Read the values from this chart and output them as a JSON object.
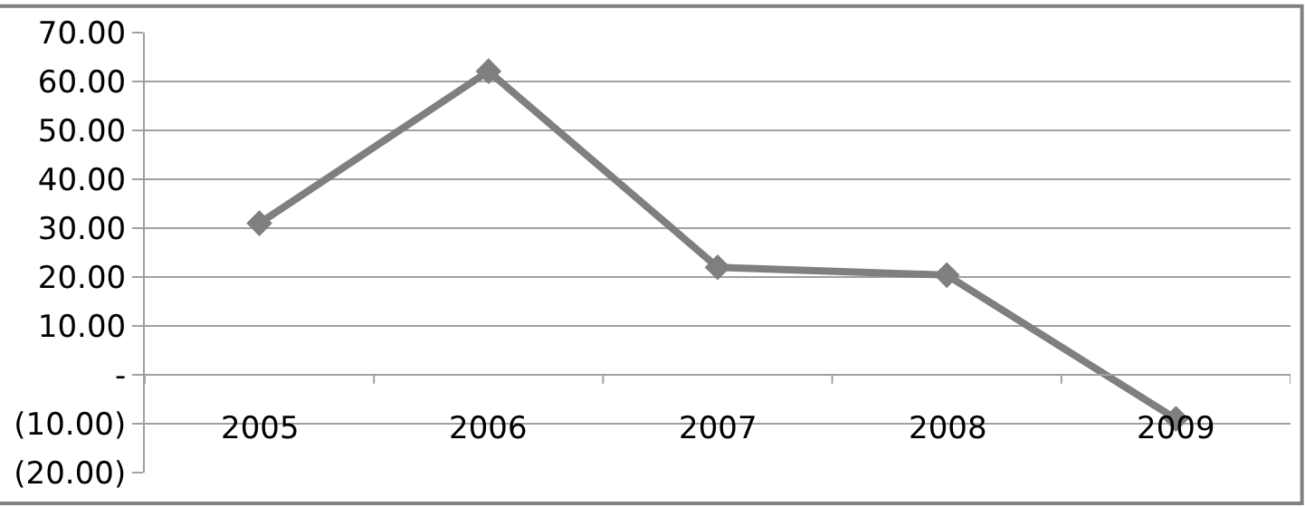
{
  "chart_data": {
    "type": "line",
    "categories": [
      "2005",
      "2006",
      "2007",
      "2008",
      "2009"
    ],
    "series": [
      {
        "color": "#7f7f7f",
        "values": [
          31.0,
          62.1,
          22.0,
          20.4,
          -9.0
        ]
      }
    ],
    "ylim": [
      -20,
      70
    ],
    "yticks": [
      {
        "value": -20,
        "label": "(20.00)"
      },
      {
        "value": -10,
        "label": "(10.00)"
      },
      {
        "value": 0,
        "label": "-"
      },
      {
        "value": 10,
        "label": "10.00"
      },
      {
        "value": 20,
        "label": "20.00"
      },
      {
        "value": 30,
        "label": "30.00"
      },
      {
        "value": 40,
        "label": "40.00"
      },
      {
        "value": 50,
        "label": "50.00"
      },
      {
        "value": 60,
        "label": "60.00"
      },
      {
        "value": 70,
        "label": "70.00"
      }
    ],
    "grid": "y",
    "marker": "diamond",
    "line_style": "solid",
    "legend": false
  }
}
